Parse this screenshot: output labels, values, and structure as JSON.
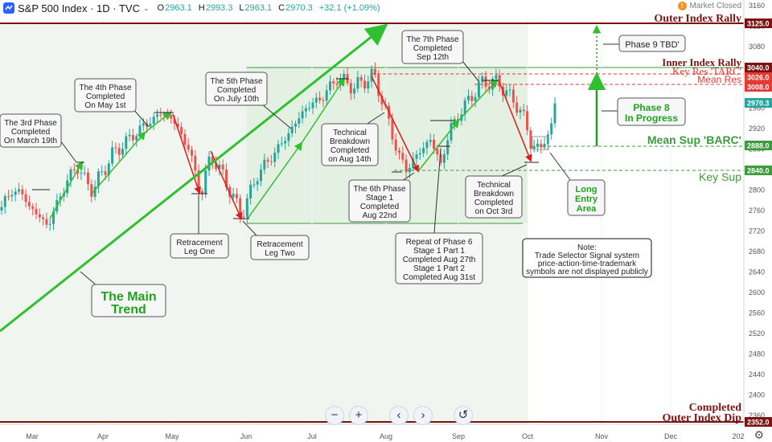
{
  "header": {
    "symbol": "S&P 500 Index · 1D · TVC",
    "open_label": "O",
    "open": "2963.1",
    "high_label": "H",
    "high": "2993.3",
    "low_label": "L",
    "low": "2963.1",
    "close_label": "C",
    "close": "2970.3",
    "change": "+32.1 (+1.09%)",
    "market_status": "Market Closed",
    "up_color": "#26a69a"
  },
  "chart_data": {
    "type": "candlestick",
    "ylim": [
      2352,
      3160
    ],
    "y_ticks": [
      3160,
      3120,
      3080,
      3040,
      3000,
      2960,
      2920,
      2880,
      2840,
      2800,
      2760,
      2720,
      2680,
      2640,
      2600,
      2560,
      2520,
      2480,
      2440,
      2400,
      2360
    ],
    "x_ticks": [
      "Mar",
      "Apr",
      "May",
      "Jun",
      "Jul",
      "Aug",
      "Sep",
      "Oct",
      "Nov",
      "Dec",
      "202"
    ],
    "price_labels": [
      {
        "value": 3125.0,
        "text": "3125.0",
        "color": "#7b1313"
      },
      {
        "value": 3040.0,
        "text": "3040.0",
        "color": "#7b1313"
      },
      {
        "value": 3026.0,
        "text": "3026.0",
        "color": "#e53935"
      },
      {
        "value": 3008.0,
        "text": "3008.0",
        "color": "#e53935"
      },
      {
        "value": 2970.3,
        "text": "2970.3",
        "color": "#26a69a"
      },
      {
        "value": 2888.0,
        "text": "2888.0",
        "color": "#3d9a3d"
      },
      {
        "value": 2840.0,
        "text": "2840.0",
        "color": "#3d9a3d"
      },
      {
        "value": 2352.0,
        "text": "2352.0",
        "color": "#7b1313"
      }
    ],
    "levels": [
      {
        "value": 3125,
        "label": "Outer Index Rally",
        "color": "#7b1313"
      },
      {
        "value": 3040,
        "label": "Inner Index Rally",
        "color": "#7b1313"
      },
      {
        "value": 3026,
        "label": "Key Res 'TARC'",
        "color": "#e53935"
      },
      {
        "value": 3008,
        "label": "Mean Res",
        "color": "#e53935"
      },
      {
        "value": 2888,
        "label": "Mean Sup 'BARC'",
        "color": "#3d9a3d"
      },
      {
        "value": 2840,
        "label": "Key Sup",
        "color": "#3d9a3d"
      },
      {
        "value": 2352,
        "label_lines": [
          "Completed",
          "Outer Index Dip"
        ],
        "color": "#7b1313"
      }
    ],
    "annotations": {
      "phase3": [
        "The 3rd Phase",
        "Completed",
        "On March 19th"
      ],
      "phase4": [
        "The 4th Phase",
        "Completed",
        "On May 1st"
      ],
      "phase5": [
        "The 5th Phase",
        "Completed",
        "On July 10th"
      ],
      "phase7": [
        "The 7th Phase",
        "Completed",
        "Sep 12th"
      ],
      "tech_aug": [
        "Technical",
        "Breakdown",
        "Completed",
        "on Aug 14th"
      ],
      "phase6": [
        "The 6th Phase",
        "Stage 1",
        "Completed",
        "Aug 22nd"
      ],
      "repeat6": [
        "Repeat of Phase 6",
        "Stage 1 Part 1",
        "Completed Aug 27th",
        "Stage 1 Part 2",
        "Completed Aug 31st"
      ],
      "tech_oct": [
        "Technical",
        "Breakdown",
        "Completed",
        "on Oct 3rd"
      ],
      "retr1": [
        "Retracement",
        "Leg One"
      ],
      "retr2": [
        "Retracement",
        "Leg Two"
      ],
      "main_trend": [
        "The Main",
        "Trend"
      ],
      "phase9": [
        "Phase 9 TBD'"
      ],
      "phase8": [
        "Phase 8",
        "In Progress"
      ],
      "long_entry": [
        "Long",
        "Entry",
        "Area"
      ],
      "note": [
        "Note:",
        "Trade Selector Signal system",
        "price-action-time-trademark",
        "symbols are not displayed publicly"
      ]
    },
    "colors": {
      "up": "#26a69a",
      "down": "#ef5350",
      "trend": "#2fc02f",
      "retrace": "#e01b1b"
    }
  },
  "toolbar": {
    "zoom_out": "−",
    "zoom_in": "+",
    "scroll_left": "‹",
    "scroll_right": "›",
    "reset": "↺"
  }
}
